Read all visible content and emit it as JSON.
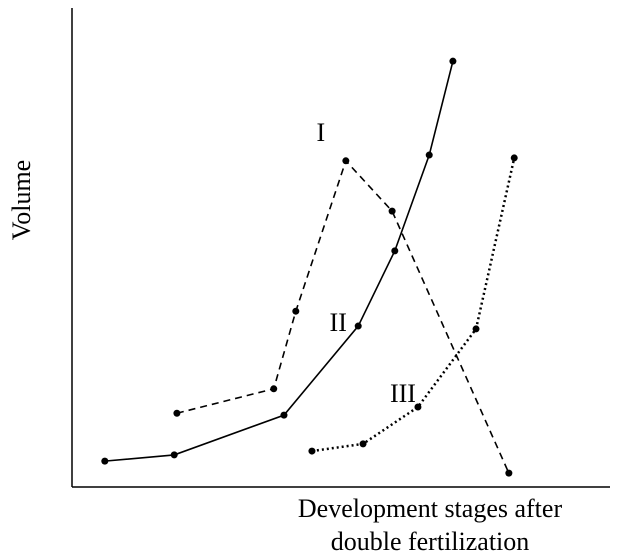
{
  "chart_data": {
    "type": "line",
    "ylabel": "Volume",
    "xlabel": [
      "Development stages after",
      "double fertilization"
    ],
    "xlim": [
      0,
      100
    ],
    "ylim": [
      0,
      100
    ],
    "series": [
      {
        "name": "I",
        "color": "#000000",
        "style": "dashed",
        "x": [
          19.5,
          37.5,
          41.6,
          50.9,
          59.5,
          81.2
        ],
        "values": [
          15.4,
          20.5,
          36.7,
          68.1,
          57.6,
          2.9
        ]
      },
      {
        "name": "II",
        "color": "#000000",
        "style": "solid",
        "x": [
          6.1,
          19.0,
          39.4,
          53.2,
          60.0,
          66.4,
          70.8
        ],
        "values": [
          5.4,
          6.7,
          15.0,
          33.6,
          49.3,
          69.3,
          88.9
        ]
      },
      {
        "name": "III",
        "color": "#000000",
        "style": "dotted",
        "x": [
          44.6,
          54.1,
          64.3,
          75.1,
          82.2
        ],
        "values": [
          7.5,
          9.0,
          16.7,
          33.0,
          68.7
        ]
      }
    ]
  }
}
